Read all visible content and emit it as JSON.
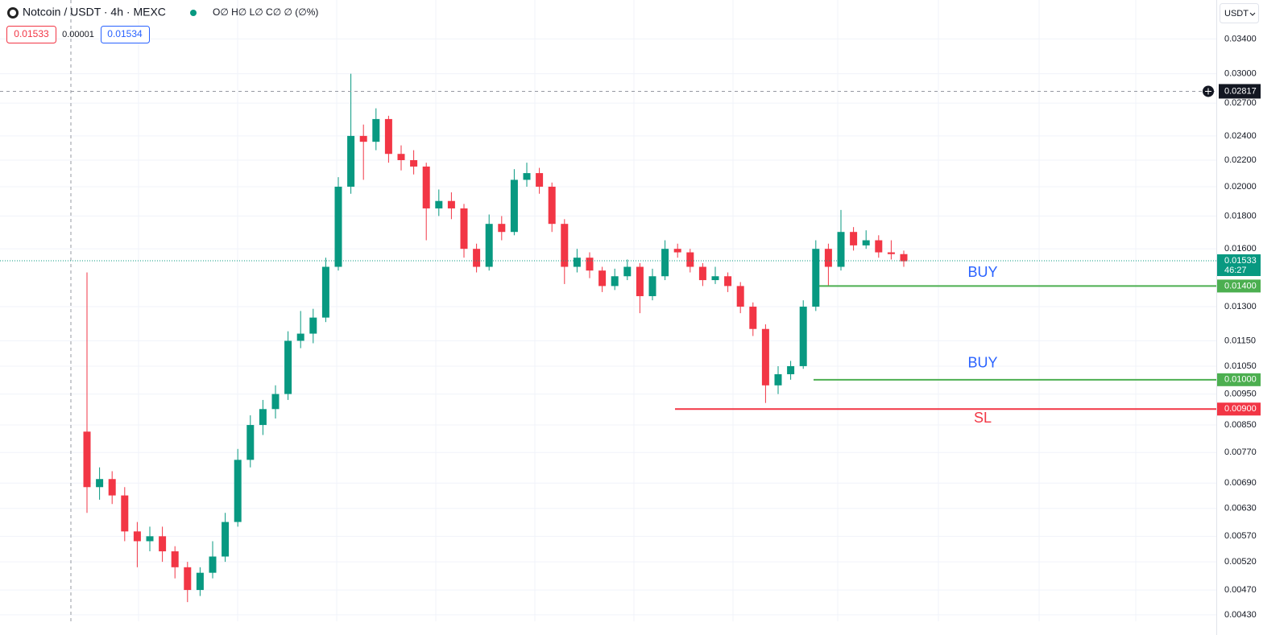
{
  "header": {
    "symbol": "Notcoin / USDT · 4h · MEXC",
    "ohlc": "O∅ H∅ L∅ C∅ ∅ (∅%)",
    "bid": "0.01533",
    "spread": "0.00001",
    "ask": "0.01534",
    "currency": "USDT"
  },
  "chart_data": {
    "type": "candlestick",
    "open": [
      0.0083,
      0.0068,
      0.007,
      0.0066,
      0.0058,
      0.0056,
      0.0057,
      0.0054,
      0.0051,
      0.0047,
      0.005,
      0.0053,
      0.006,
      0.0075,
      0.0085,
      0.009,
      0.0095,
      0.0115,
      0.0118,
      0.0125,
      0.015,
      0.02,
      0.024,
      0.0235,
      0.0255,
      0.0225,
      0.022,
      0.0215,
      0.0185,
      0.019,
      0.0185,
      0.016,
      0.015,
      0.0175,
      0.017,
      0.0205,
      0.021,
      0.02,
      0.0175,
      0.015,
      0.0155,
      0.0148,
      0.014,
      0.0145,
      0.015,
      0.0135,
      0.0145,
      0.016,
      0.0158,
      0.015,
      0.0143,
      0.0145,
      0.014,
      0.013,
      0.012,
      0.0098,
      0.0102,
      0.0105,
      0.013,
      0.016,
      0.015,
      0.017,
      0.0162,
      0.0165,
      0.0158,
      0.0157
    ],
    "high": [
      0.0147,
      0.0073,
      0.0072,
      0.0068,
      0.006,
      0.0059,
      0.0059,
      0.0055,
      0.0052,
      0.0051,
      0.0056,
      0.0062,
      0.0078,
      0.0088,
      0.0093,
      0.0098,
      0.0119,
      0.0128,
      0.0129,
      0.0155,
      0.0207,
      0.03,
      0.025,
      0.0265,
      0.0258,
      0.0232,
      0.0228,
      0.0218,
      0.0198,
      0.0196,
      0.0188,
      0.0163,
      0.0181,
      0.018,
      0.0213,
      0.0218,
      0.0214,
      0.0203,
      0.0178,
      0.016,
      0.0158,
      0.015,
      0.0149,
      0.0154,
      0.0152,
      0.0149,
      0.0165,
      0.0163,
      0.016,
      0.0152,
      0.015,
      0.0147,
      0.0142,
      0.0132,
      0.0122,
      0.0105,
      0.0107,
      0.0133,
      0.0165,
      0.0163,
      0.0184,
      0.0173,
      0.0171,
      0.0168,
      0.0165,
      0.0159
    ],
    "low": [
      0.0062,
      0.0065,
      0.0064,
      0.0056,
      0.0051,
      0.0054,
      0.0052,
      0.0049,
      0.0045,
      0.0046,
      0.0049,
      0.0052,
      0.0059,
      0.0073,
      0.0082,
      0.0087,
      0.0093,
      0.0112,
      0.0114,
      0.0123,
      0.0148,
      0.0195,
      0.0205,
      0.0228,
      0.0218,
      0.0212,
      0.0209,
      0.0165,
      0.018,
      0.0178,
      0.0155,
      0.0147,
      0.0148,
      0.0165,
      0.0168,
      0.02,
      0.0195,
      0.017,
      0.0141,
      0.0147,
      0.0144,
      0.0137,
      0.0138,
      0.0143,
      0.0127,
      0.0133,
      0.0143,
      0.0155,
      0.0147,
      0.014,
      0.0141,
      0.0137,
      0.0127,
      0.0117,
      0.0092,
      0.0095,
      0.01,
      0.0104,
      0.0128,
      0.014,
      0.0148,
      0.0159,
      0.016,
      0.0155,
      0.0154,
      0.015
    ],
    "close": [
      0.0068,
      0.007,
      0.0066,
      0.0058,
      0.0056,
      0.0057,
      0.0054,
      0.0051,
      0.0047,
      0.005,
      0.0053,
      0.006,
      0.0075,
      0.0085,
      0.009,
      0.0095,
      0.0115,
      0.0118,
      0.0125,
      0.015,
      0.02,
      0.024,
      0.0235,
      0.0255,
      0.0225,
      0.022,
      0.0215,
      0.0185,
      0.019,
      0.0185,
      0.016,
      0.015,
      0.0175,
      0.017,
      0.0205,
      0.021,
      0.02,
      0.0175,
      0.015,
      0.0155,
      0.0148,
      0.014,
      0.0145,
      0.015,
      0.0135,
      0.0145,
      0.016,
      0.0158,
      0.015,
      0.0143,
      0.0145,
      0.014,
      0.013,
      0.012,
      0.0098,
      0.0102,
      0.0105,
      0.013,
      0.016,
      0.015,
      0.017,
      0.0162,
      0.0165,
      0.0158,
      0.0157,
      0.0153
    ],
    "up_color": "#089981",
    "down_color": "#f23645",
    "ylim": [
      0.0042,
      0.0391
    ],
    "log_scale": true,
    "grid": true,
    "yticks": [
      {
        "value": 0.034,
        "label": "0.03400"
      },
      {
        "value": 0.03,
        "label": "0.03000"
      },
      {
        "value": 0.027,
        "label": "0.02700"
      },
      {
        "value": 0.024,
        "label": "0.02400"
      },
      {
        "value": 0.022,
        "label": "0.02200"
      },
      {
        "value": 0.02,
        "label": "0.02000"
      },
      {
        "value": 0.018,
        "label": "0.01800"
      },
      {
        "value": 0.016,
        "label": "0.01600"
      },
      {
        "value": 0.013,
        "label": "0.01300"
      },
      {
        "value": 0.0115,
        "label": "0.01150"
      },
      {
        "value": 0.0105,
        "label": "0.01050"
      },
      {
        "value": 0.0095,
        "label": "0.00950"
      },
      {
        "value": 0.0085,
        "label": "0.00850"
      },
      {
        "value": 0.0077,
        "label": "0.00770"
      },
      {
        "value": 0.0069,
        "label": "0.00690"
      },
      {
        "value": 0.0063,
        "label": "0.00630"
      },
      {
        "value": 0.0057,
        "label": "0.00570"
      },
      {
        "value": 0.0052,
        "label": "0.00520"
      },
      {
        "value": 0.0047,
        "label": "0.00470"
      },
      {
        "value": 0.0043,
        "label": "0.00430"
      }
    ],
    "crosshair": {
      "value": 0.02817,
      "label": "0.02817"
    },
    "last_price": {
      "value": 0.01533,
      "label": "0.01533",
      "countdown": "46:27",
      "color": "#089981"
    },
    "levels": [
      {
        "value": 0.014,
        "label": "0.01400",
        "text": "BUY",
        "color": "#4caf50",
        "text_color": "#2962ff"
      },
      {
        "value": 0.01,
        "label": "0.01000",
        "text": "BUY",
        "color": "#4caf50",
        "text_color": "#2962ff"
      },
      {
        "value": 0.009,
        "label": "0.00900",
        "text": "SL",
        "color": "#f23645",
        "text_color": "#f23645"
      }
    ]
  }
}
